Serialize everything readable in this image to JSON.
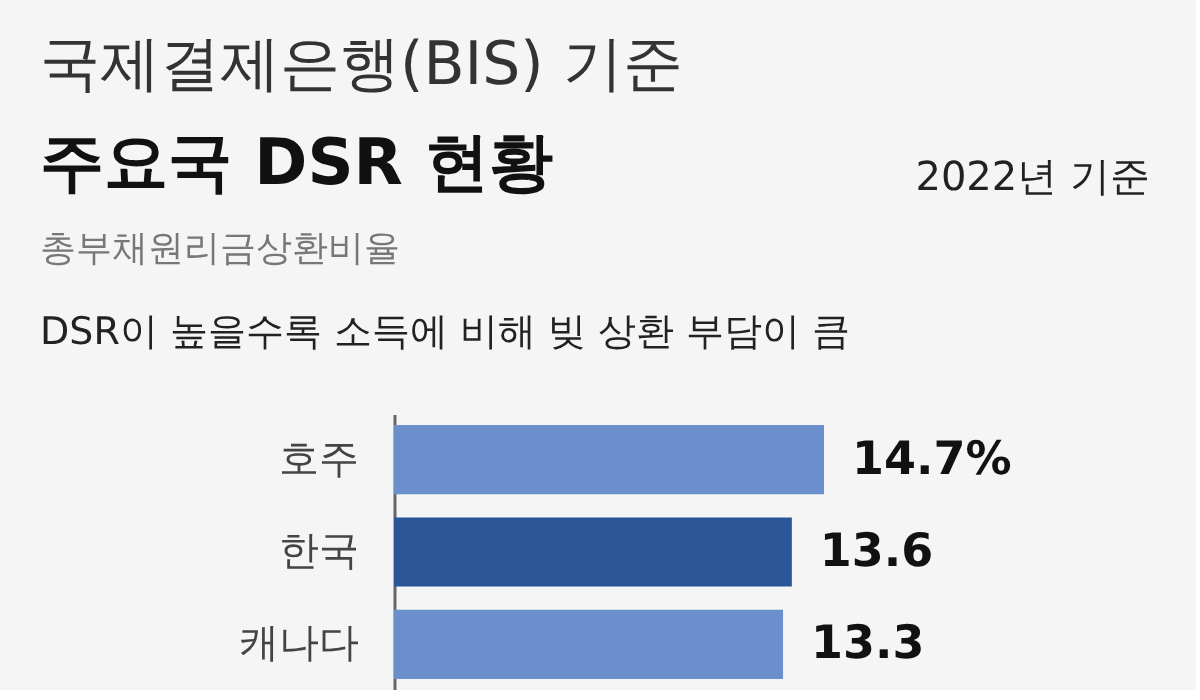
{
  "chart_data": {
    "type": "bar",
    "orientation": "horizontal",
    "title": [
      "국제결제은행(BIS) 기준",
      "주요국 DSR 현황"
    ],
    "subtitle": "총부채원리금상환비율",
    "annotations": [
      "2022년 기준",
      "DSR이 높을수록 소득에 비해 빚 상환 부담이 큼"
    ],
    "categories": [
      "호주",
      "한국",
      "캐나다"
    ],
    "values": [
      14.7,
      13.6,
      13.3
    ],
    "colors": [
      "#6b8fcc",
      "#2a5698",
      "#6b8fcc"
    ],
    "value_labels": [
      "14.7%",
      "13.6",
      "13.3"
    ],
    "grid": false
  }
}
